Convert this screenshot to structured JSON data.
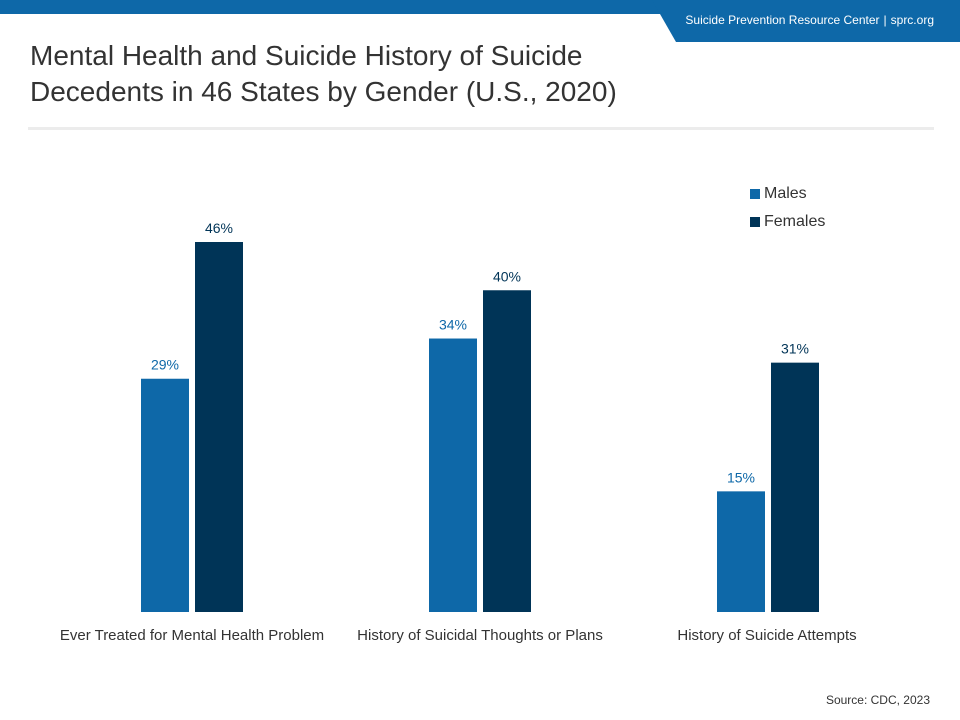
{
  "header": {
    "org": "Suicide Prevention Resource Center",
    "site": "sprc.org"
  },
  "title_lines": [
    "Mental Health and Suicide History of Suicide",
    "Decedents in 46 States by Gender (U.S., 2020)"
  ],
  "source": "Source: CDC, 2023",
  "colors": {
    "males": "#0e68a8",
    "females": "#003457",
    "header": "#0e68a8"
  },
  "chart_data": {
    "type": "bar",
    "title": "Mental Health and Suicide History of Suicide Decedents in 46 States by Gender (U.S., 2020)",
    "categories": [
      "Ever Treated for Mental Health Problem",
      "History of Suicidal Thoughts or Plans",
      "History of Suicide Attempts"
    ],
    "series": [
      {
        "name": "Males",
        "values": [
          29,
          34,
          15
        ],
        "labels": [
          "29%",
          "34%",
          "15%"
        ]
      },
      {
        "name": "Females",
        "values": [
          46,
          40,
          31
        ],
        "labels": [
          "46%",
          "40%",
          "31%"
        ]
      }
    ],
    "ylim": [
      0,
      46
    ],
    "unit": "%",
    "grid": false,
    "legend": "top-right"
  }
}
